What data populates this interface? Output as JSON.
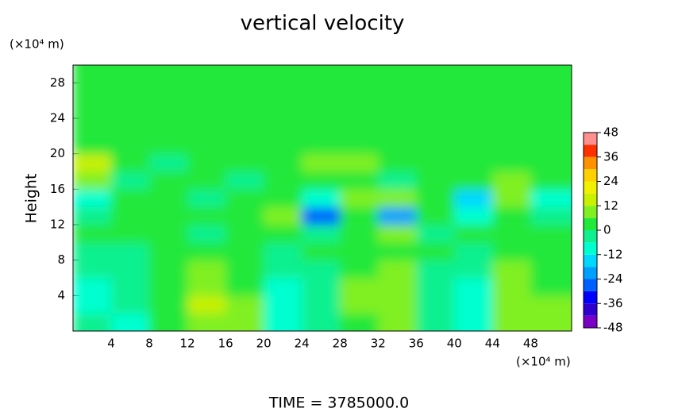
{
  "chart_data": {
    "type": "heatmap",
    "title": "vertical velocity",
    "ylabel": "Height",
    "yunit": "(×10⁴ m)",
    "xunit": "(×10⁴ m)",
    "footer": "TIME = 3785000.0",
    "xlim": [
      0,
      52.3
    ],
    "ylim": [
      0,
      30
    ],
    "xticks": [
      4,
      8,
      12,
      16,
      20,
      24,
      28,
      32,
      36,
      40,
      44,
      48
    ],
    "yticks": [
      4,
      8,
      12,
      16,
      20,
      24,
      28
    ],
    "x": [
      2,
      6,
      10,
      14,
      18,
      22,
      26,
      30,
      34,
      38,
      42,
      46,
      50
    ],
    "y": [
      1,
      3,
      5,
      7,
      9,
      11,
      13,
      15,
      17,
      19,
      21,
      23,
      25,
      27,
      29
    ],
    "z": [
      [
        -6,
        -8,
        2,
        10,
        6,
        -8,
        -6,
        4,
        10,
        -2,
        -8,
        6,
        8
      ],
      [
        -8,
        -6,
        4,
        12,
        6,
        -10,
        -6,
        6,
        10,
        -4,
        -8,
        10,
        6
      ],
      [
        -8,
        -6,
        4,
        10,
        4,
        -8,
        -4,
        6,
        8,
        -4,
        -8,
        8,
        4
      ],
      [
        -4,
        -4,
        2,
        6,
        2,
        -6,
        -2,
        4,
        6,
        -2,
        -4,
        6,
        2
      ],
      [
        -2,
        -2,
        0,
        2,
        0,
        -2,
        0,
        2,
        2,
        0,
        -2,
        2,
        0
      ],
      [
        2,
        0,
        2,
        -2,
        4,
        2,
        -6,
        2,
        6,
        -2,
        0,
        2,
        2
      ],
      [
        -6,
        4,
        2,
        0,
        2,
        6,
        -30,
        4,
        -20,
        4,
        -10,
        4,
        -4
      ],
      [
        -10,
        2,
        4,
        -2,
        2,
        0,
        -8,
        6,
        8,
        2,
        -18,
        6,
        -10
      ],
      [
        8,
        -2,
        2,
        4,
        -2,
        2,
        0,
        4,
        -4,
        2,
        2,
        8,
        2
      ],
      [
        14,
        2,
        -2,
        0,
        2,
        0,
        6,
        8,
        2,
        4,
        2,
        2,
        2
      ],
      [
        2,
        0,
        0,
        0,
        0,
        0,
        0,
        0,
        0,
        0,
        0,
        0,
        0
      ],
      [
        0,
        0,
        0,
        0,
        0,
        0,
        0,
        0,
        0,
        0,
        0,
        0,
        0
      ],
      [
        0,
        0,
        0,
        0,
        0,
        0,
        0,
        0,
        0,
        0,
        0,
        0,
        0
      ],
      [
        0,
        0,
        0,
        0,
        0,
        0,
        0,
        0,
        0,
        0,
        0,
        0,
        0
      ],
      [
        0,
        0,
        0,
        0,
        0,
        0,
        0,
        0,
        0,
        0,
        0,
        0,
        0
      ]
    ],
    "clim": [
      -48,
      48
    ],
    "cticks": [
      48,
      36,
      24,
      12,
      0,
      -12,
      -24,
      -36,
      -48
    ],
    "colormap": [
      "#7a00c8",
      "#3000d0",
      "#0000ff",
      "#0060ff",
      "#00a0ff",
      "#00d8ff",
      "#00ffd0",
      "#10f090",
      "#22e83a",
      "#80f020",
      "#c8f000",
      "#f0f000",
      "#ffd000",
      "#ff9000",
      "#ff3000",
      "#ff9090"
    ]
  }
}
